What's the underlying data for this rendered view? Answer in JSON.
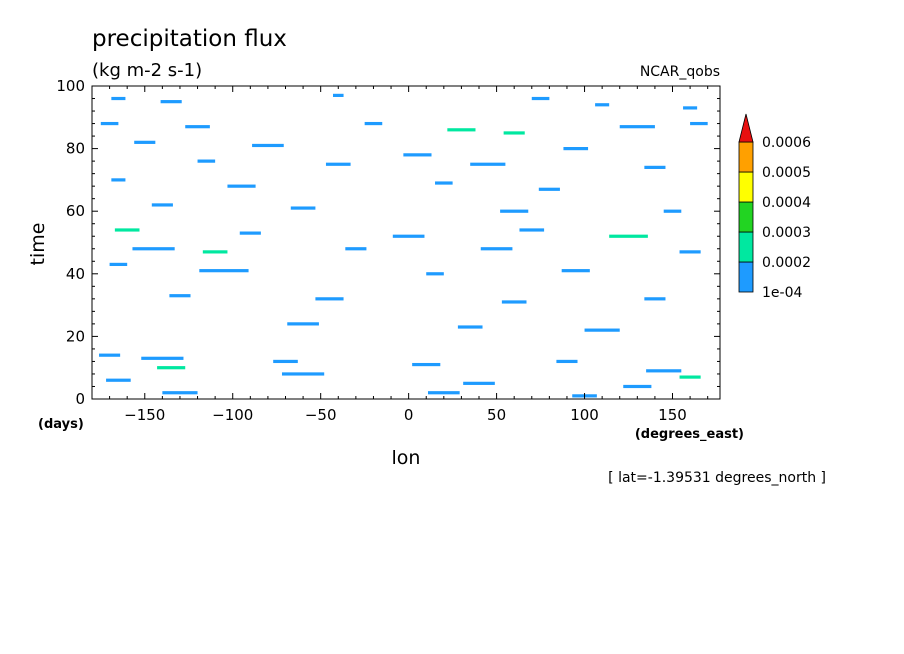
{
  "chart_data": {
    "type": "heatmap",
    "title": "precipitation flux",
    "units": "(kg m-2 s-1)",
    "dataset": "NCAR_qobs",
    "xlabel": "lon",
    "xunits": "(degrees_east)",
    "ylabel": "time",
    "yunits": "(days)",
    "xlim": [
      -180,
      177
    ],
    "ylim": [
      0,
      100
    ],
    "xticks": [
      -150,
      -100,
      -50,
      0,
      50,
      100,
      150
    ],
    "yticks": [
      0,
      20,
      40,
      60,
      80,
      100
    ],
    "footnote": "[ lat=-1.39531 degrees_north ]",
    "colorbar": {
      "labels": [
        "1e-04",
        "0.0002",
        "0.0003",
        "0.0004",
        "0.0005",
        "0.0006"
      ],
      "colors": [
        "#1e9bff",
        "#00e8a0",
        "#22d422",
        "#ffff00",
        "#ffa000",
        "#e81010"
      ]
    },
    "streaks": [
      {
        "lon": -165,
        "t": 96,
        "len": 8,
        "level": 1
      },
      {
        "lon": -135,
        "t": 95,
        "len": 12,
        "level": 1
      },
      {
        "lon": -40,
        "t": 97,
        "len": 6,
        "level": 1
      },
      {
        "lon": 75,
        "t": 96,
        "len": 10,
        "level": 1
      },
      {
        "lon": 110,
        "t": 94,
        "len": 8,
        "level": 1
      },
      {
        "lon": 160,
        "t": 93,
        "len": 8,
        "level": 1
      },
      {
        "lon": -170,
        "t": 88,
        "len": 10,
        "level": 1
      },
      {
        "lon": -120,
        "t": 87,
        "len": 14,
        "level": 1
      },
      {
        "lon": -20,
        "t": 88,
        "len": 10,
        "level": 1
      },
      {
        "lon": 30,
        "t": 86,
        "len": 16,
        "level": 2
      },
      {
        "lon": 60,
        "t": 85,
        "len": 12,
        "level": 2
      },
      {
        "lon": 130,
        "t": 87,
        "len": 20,
        "level": 1
      },
      {
        "lon": 165,
        "t": 88,
        "len": 10,
        "level": 1
      },
      {
        "lon": -150,
        "t": 82,
        "len": 12,
        "level": 1
      },
      {
        "lon": -80,
        "t": 81,
        "len": 18,
        "level": 1
      },
      {
        "lon": 5,
        "t": 78,
        "len": 16,
        "level": 1
      },
      {
        "lon": 95,
        "t": 80,
        "len": 14,
        "level": 1
      },
      {
        "lon": -115,
        "t": 76,
        "len": 10,
        "level": 1
      },
      {
        "lon": -40,
        "t": 75,
        "len": 14,
        "level": 1
      },
      {
        "lon": 45,
        "t": 75,
        "len": 20,
        "level": 1
      },
      {
        "lon": 140,
        "t": 74,
        "len": 12,
        "level": 1
      },
      {
        "lon": -165,
        "t": 70,
        "len": 8,
        "level": 1
      },
      {
        "lon": -95,
        "t": 68,
        "len": 16,
        "level": 1
      },
      {
        "lon": 20,
        "t": 69,
        "len": 10,
        "level": 1
      },
      {
        "lon": 80,
        "t": 67,
        "len": 12,
        "level": 1
      },
      {
        "lon": -140,
        "t": 62,
        "len": 12,
        "level": 1
      },
      {
        "lon": -60,
        "t": 61,
        "len": 14,
        "level": 1
      },
      {
        "lon": 60,
        "t": 60,
        "len": 16,
        "level": 1
      },
      {
        "lon": 150,
        "t": 60,
        "len": 10,
        "level": 1
      },
      {
        "lon": -160,
        "t": 54,
        "len": 14,
        "level": 2
      },
      {
        "lon": -90,
        "t": 53,
        "len": 12,
        "level": 1
      },
      {
        "lon": 0,
        "t": 52,
        "len": 18,
        "level": 1
      },
      {
        "lon": 70,
        "t": 54,
        "len": 14,
        "level": 1
      },
      {
        "lon": 125,
        "t": 52,
        "len": 22,
        "level": 2
      },
      {
        "lon": -145,
        "t": 48,
        "len": 24,
        "level": 1
      },
      {
        "lon": -110,
        "t": 47,
        "len": 14,
        "level": 2
      },
      {
        "lon": -30,
        "t": 48,
        "len": 12,
        "level": 1
      },
      {
        "lon": 50,
        "t": 48,
        "len": 18,
        "level": 1
      },
      {
        "lon": 160,
        "t": 47,
        "len": 12,
        "level": 1
      },
      {
        "lon": -165,
        "t": 43,
        "len": 10,
        "level": 1
      },
      {
        "lon": -105,
        "t": 41,
        "len": 28,
        "level": 1
      },
      {
        "lon": 15,
        "t": 40,
        "len": 10,
        "level": 1
      },
      {
        "lon": 95,
        "t": 41,
        "len": 16,
        "level": 1
      },
      {
        "lon": -130,
        "t": 33,
        "len": 12,
        "level": 1
      },
      {
        "lon": -45,
        "t": 32,
        "len": 16,
        "level": 1
      },
      {
        "lon": 60,
        "t": 31,
        "len": 14,
        "level": 1
      },
      {
        "lon": 140,
        "t": 32,
        "len": 12,
        "level": 1
      },
      {
        "lon": -60,
        "t": 24,
        "len": 18,
        "level": 1
      },
      {
        "lon": 35,
        "t": 23,
        "len": 14,
        "level": 1
      },
      {
        "lon": 110,
        "t": 22,
        "len": 20,
        "level": 1
      },
      {
        "lon": -170,
        "t": 14,
        "len": 12,
        "level": 1
      },
      {
        "lon": -140,
        "t": 13,
        "len": 24,
        "level": 1
      },
      {
        "lon": -135,
        "t": 10,
        "len": 16,
        "level": 2
      },
      {
        "lon": -70,
        "t": 12,
        "len": 14,
        "level": 1
      },
      {
        "lon": 10,
        "t": 11,
        "len": 16,
        "level": 1
      },
      {
        "lon": 90,
        "t": 12,
        "len": 12,
        "level": 1
      },
      {
        "lon": 145,
        "t": 9,
        "len": 20,
        "level": 1
      },
      {
        "lon": 160,
        "t": 7,
        "len": 12,
        "level": 2
      },
      {
        "lon": -165,
        "t": 6,
        "len": 14,
        "level": 1
      },
      {
        "lon": -60,
        "t": 8,
        "len": 24,
        "level": 1
      },
      {
        "lon": 40,
        "t": 5,
        "len": 18,
        "level": 1
      },
      {
        "lon": 130,
        "t": 4,
        "len": 16,
        "level": 1
      },
      {
        "lon": -130,
        "t": 2,
        "len": 20,
        "level": 1
      },
      {
        "lon": 20,
        "t": 2,
        "len": 18,
        "level": 1
      },
      {
        "lon": 100,
        "t": 1,
        "len": 14,
        "level": 1
      }
    ]
  }
}
